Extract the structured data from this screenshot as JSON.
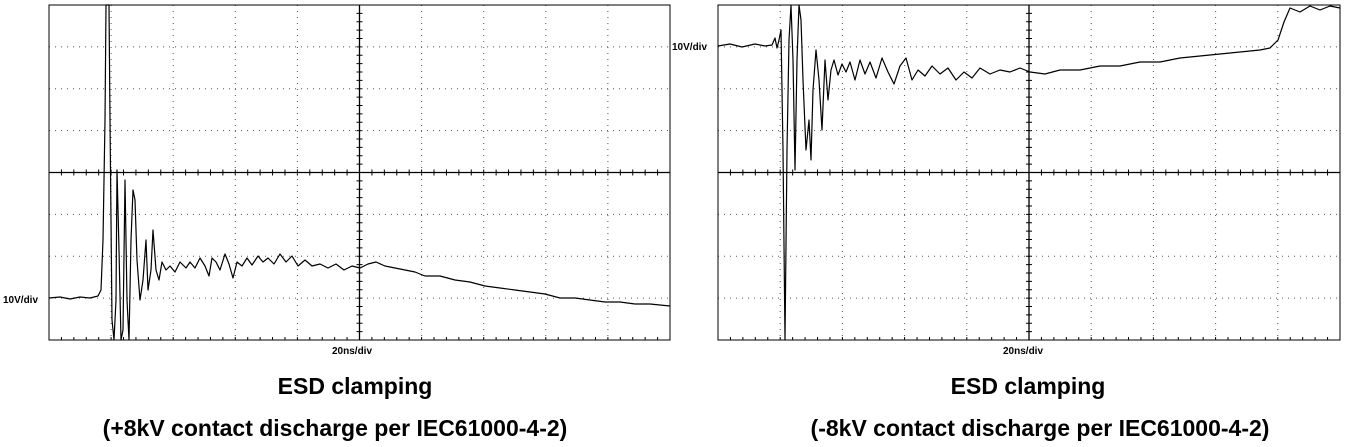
{
  "panels": [
    {
      "vertical_scale": "10V/div",
      "horizontal_scale": "20ns/div",
      "caption": {
        "line1": "ESD clamping",
        "line2": "(+8kV contact discharge per IEC61000-4-2)"
      }
    },
    {
      "vertical_scale": "10V/div",
      "horizontal_scale": "20ns/div",
      "caption": {
        "line1": "ESD clamping",
        "line2": "(-8kV contact discharge per IEC61000-4-2)"
      }
    }
  ]
}
